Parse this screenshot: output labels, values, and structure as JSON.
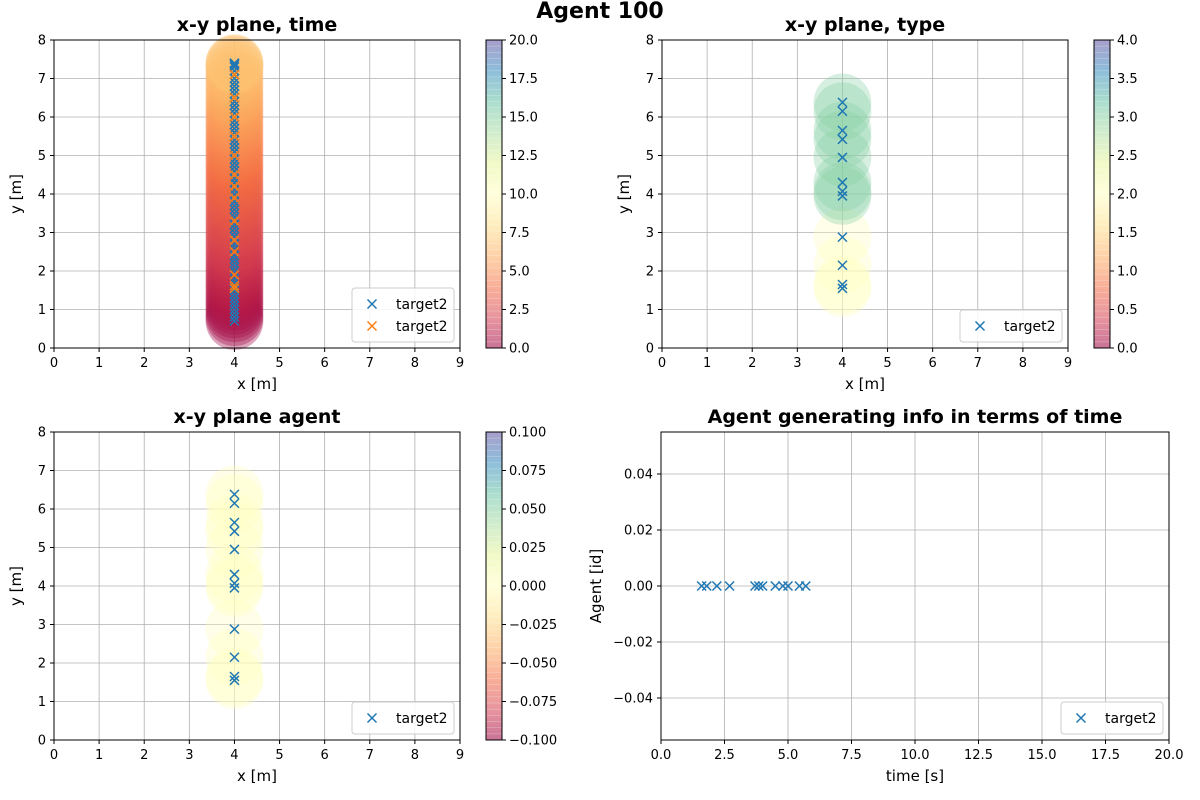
{
  "suptitle": "Agent 100",
  "colormap": [
    "#9e0142",
    "#d53e4f",
    "#f46d43",
    "#fdae61",
    "#fee08b",
    "#ffffbf",
    "#e6f598",
    "#abdda4",
    "#66c2a5",
    "#3288bd",
    "#5e4fa2"
  ],
  "colors": {
    "series_blue": "#1f77b4",
    "series_orange": "#ff7f0e",
    "grid": "#b0b0b0"
  },
  "chart_data": [
    {
      "type": "scatter",
      "title": "x-y plane, time",
      "xlabel": "x [m]",
      "ylabel": "y [m]",
      "xlim": [
        0,
        9
      ],
      "ylim": [
        0,
        8
      ],
      "xticks": [
        "0",
        "1",
        "2",
        "3",
        "4",
        "5",
        "6",
        "7",
        "8",
        "9"
      ],
      "yticks": [
        "0",
        "1",
        "2",
        "3",
        "4",
        "5",
        "6",
        "7",
        "8"
      ],
      "grid": true,
      "legend_position": "lower-right",
      "colorbar": {
        "min": 0.0,
        "max": 20.0,
        "ticks": [
          "0.0",
          "2.5",
          "5.0",
          "7.5",
          "10.0",
          "12.5",
          "15.0",
          "17.5",
          "20.0"
        ]
      },
      "bubbles": {
        "x": [
          4,
          4,
          4,
          4,
          4,
          4,
          4,
          4,
          4,
          4,
          4,
          4,
          4,
          4,
          4,
          4,
          4,
          4,
          4,
          4,
          4,
          4,
          4,
          4,
          4,
          4,
          4,
          4,
          4,
          4,
          4,
          4,
          4,
          4,
          4,
          4,
          4,
          4,
          4,
          4,
          4,
          4,
          4,
          4,
          4,
          4,
          4,
          4,
          4,
          4,
          4,
          4,
          4,
          4,
          4,
          4,
          4,
          4,
          4,
          4,
          4,
          4,
          4,
          4,
          4,
          4,
          4,
          4,
          4,
          4
        ],
        "y": [
          0.7,
          0.8,
          0.9,
          1.0,
          1.1,
          1.2,
          1.3,
          1.4,
          1.5,
          1.6,
          1.7,
          1.8,
          1.9,
          2.0,
          2.1,
          2.2,
          2.3,
          2.4,
          2.5,
          2.6,
          2.7,
          2.8,
          2.9,
          3.0,
          3.1,
          3.2,
          3.3,
          3.4,
          3.5,
          3.6,
          3.7,
          3.8,
          3.9,
          4.0,
          4.1,
          4.2,
          4.3,
          4.4,
          4.5,
          4.6,
          4.7,
          4.8,
          4.9,
          5.0,
          5.1,
          5.2,
          5.3,
          5.4,
          5.5,
          5.6,
          5.7,
          5.8,
          5.9,
          6.0,
          6.1,
          6.2,
          6.3,
          6.4,
          6.5,
          6.6,
          6.7,
          6.8,
          6.9,
          7.0,
          7.1,
          7.2,
          7.3,
          7.35,
          7.38,
          7.4
        ],
        "c": [
          0.0,
          0.1,
          0.2,
          0.3,
          0.4,
          0.5,
          0.6,
          0.7,
          0.8,
          0.9,
          1.0,
          1.1,
          1.2,
          1.3,
          1.4,
          1.5,
          1.6,
          1.7,
          1.8,
          1.9,
          2.0,
          2.1,
          2.2,
          2.3,
          2.4,
          2.5,
          2.6,
          2.7,
          2.8,
          2.9,
          3.0,
          3.1,
          3.2,
          3.3,
          3.4,
          3.5,
          3.6,
          3.7,
          3.8,
          3.9,
          4.0,
          4.1,
          4.2,
          4.3,
          4.4,
          4.5,
          4.6,
          4.7,
          4.8,
          4.9,
          5.0,
          5.1,
          5.2,
          5.3,
          5.4,
          5.5,
          5.6,
          5.7,
          5.8,
          5.9,
          6.0,
          6.1,
          6.2,
          6.3,
          6.4,
          6.5,
          6.6,
          6.7,
          6.8,
          6.9
        ]
      },
      "series": [
        {
          "name": "target2",
          "color": "#1f77b4",
          "marker": "x",
          "x": [
            4,
            4,
            4,
            4,
            4,
            4,
            4,
            4,
            4,
            4,
            4,
            4,
            4,
            4,
            4,
            4,
            4,
            4,
            4,
            4,
            4,
            4,
            4,
            4,
            4,
            4,
            4,
            4,
            4,
            4,
            4,
            4,
            4,
            4,
            4,
            4,
            4,
            4,
            4,
            4,
            4,
            4,
            4,
            4,
            4,
            4,
            4,
            4,
            4,
            4,
            4,
            4,
            4,
            4,
            4,
            4,
            4,
            4,
            4,
            4,
            4,
            4,
            4,
            4,
            4,
            4,
            4,
            4,
            4,
            4
          ],
          "y": [
            0.7,
            0.8,
            0.9,
            1.0,
            1.1,
            1.2,
            1.3,
            1.4,
            1.5,
            1.6,
            1.7,
            1.8,
            1.9,
            2.0,
            2.1,
            2.2,
            2.3,
            2.4,
            2.5,
            2.6,
            2.7,
            2.8,
            2.9,
            3.0,
            3.1,
            3.2,
            3.3,
            3.4,
            3.5,
            3.6,
            3.7,
            3.8,
            3.9,
            4.0,
            4.1,
            4.2,
            4.3,
            4.4,
            4.5,
            4.6,
            4.7,
            4.8,
            4.9,
            5.0,
            5.1,
            5.2,
            5.3,
            5.4,
            5.5,
            5.6,
            5.7,
            5.8,
            5.9,
            6.0,
            6.1,
            6.2,
            6.3,
            6.4,
            6.5,
            6.6,
            6.7,
            6.8,
            6.9,
            7.0,
            7.1,
            7.2,
            7.3,
            7.35,
            7.38,
            7.4
          ]
        },
        {
          "name": "target2",
          "color": "#ff7f0e",
          "marker": "x",
          "x": [
            4,
            4,
            4,
            4,
            4,
            4,
            4,
            4,
            4,
            4,
            4,
            4,
            4,
            4
          ],
          "y": [
            1.55,
            1.62,
            1.9,
            2.5,
            2.8,
            3.3,
            3.9,
            4.2,
            4.5,
            5.0,
            5.5,
            6.0,
            6.5,
            7.1
          ]
        }
      ]
    },
    {
      "type": "scatter",
      "title": "x-y plane, type",
      "xlabel": "x [m]",
      "ylabel": "y [m]",
      "xlim": [
        0,
        9
      ],
      "ylim": [
        0,
        8
      ],
      "xticks": [
        "0",
        "1",
        "2",
        "3",
        "4",
        "5",
        "6",
        "7",
        "8",
        "9"
      ],
      "yticks": [
        "0",
        "1",
        "2",
        "3",
        "4",
        "5",
        "6",
        "7",
        "8"
      ],
      "grid": true,
      "legend_position": "lower-right",
      "colorbar": {
        "min": 0.0,
        "max": 4.0,
        "ticks": [
          "0.0",
          "0.5",
          "1.0",
          "1.5",
          "2.0",
          "2.5",
          "3.0",
          "3.5",
          "4.0"
        ]
      },
      "bubbles": {
        "x": [
          4,
          4,
          4,
          4,
          4,
          4,
          4,
          4,
          4,
          4,
          4,
          4
        ],
        "y": [
          1.55,
          1.65,
          2.15,
          2.88,
          3.95,
          4.07,
          4.3,
          4.95,
          5.42,
          5.65,
          6.15,
          6.38
        ],
        "c": [
          2.0,
          2.0,
          2.0,
          2.0,
          3.0,
          3.0,
          3.0,
          3.0,
          3.0,
          3.0,
          3.0,
          3.0
        ]
      },
      "series": [
        {
          "name": "target2",
          "color": "#1f77b4",
          "marker": "x",
          "x": [
            4,
            4,
            4,
            4,
            4,
            4,
            4,
            4,
            4,
            4,
            4,
            4
          ],
          "y": [
            1.55,
            1.65,
            2.15,
            2.88,
            3.95,
            4.07,
            4.3,
            4.95,
            5.42,
            5.65,
            6.15,
            6.38
          ]
        }
      ]
    },
    {
      "type": "scatter",
      "title": "x-y plane agent",
      "xlabel": "x [m]",
      "ylabel": "y [m]",
      "xlim": [
        0,
        9
      ],
      "ylim": [
        0,
        8
      ],
      "xticks": [
        "0",
        "1",
        "2",
        "3",
        "4",
        "5",
        "6",
        "7",
        "8",
        "9"
      ],
      "yticks": [
        "0",
        "1",
        "2",
        "3",
        "4",
        "5",
        "6",
        "7",
        "8"
      ],
      "grid": true,
      "legend_position": "lower-right",
      "colorbar": {
        "min": -0.1,
        "max": 0.1,
        "ticks": [
          "−0.100",
          "−0.075",
          "−0.050",
          "−0.025",
          "0.000",
          "0.025",
          "0.050",
          "0.075",
          "0.100"
        ]
      },
      "bubbles": {
        "x": [
          4,
          4,
          4,
          4,
          4,
          4,
          4,
          4,
          4,
          4,
          4,
          4
        ],
        "y": [
          1.55,
          1.65,
          2.15,
          2.88,
          3.95,
          4.07,
          4.3,
          4.95,
          5.42,
          5.65,
          6.15,
          6.38
        ],
        "c": [
          0,
          0,
          0,
          0,
          0,
          0,
          0,
          0,
          0,
          0,
          0,
          0
        ]
      },
      "series": [
        {
          "name": "target2",
          "color": "#1f77b4",
          "marker": "x",
          "x": [
            4,
            4,
            4,
            4,
            4,
            4,
            4,
            4,
            4,
            4,
            4,
            4
          ],
          "y": [
            1.55,
            1.65,
            2.15,
            2.88,
            3.95,
            4.07,
            4.3,
            4.95,
            5.42,
            5.65,
            6.15,
            6.38
          ]
        }
      ]
    },
    {
      "type": "scatter",
      "title": "Agent generating info in terms of time",
      "xlabel": "time [s]",
      "ylabel": "Agent [id]",
      "xlim": [
        0,
        20
      ],
      "ylim": [
        -0.055,
        0.055
      ],
      "xticks": [
        "0.0",
        "2.5",
        "5.0",
        "7.5",
        "10.0",
        "12.5",
        "15.0",
        "17.5",
        "20.0"
      ],
      "yticks": [
        "−0.04",
        "−0.02",
        "0.00",
        "0.02",
        "0.04"
      ],
      "grid": true,
      "legend_position": "lower-right",
      "series": [
        {
          "name": "target2",
          "color": "#1f77b4",
          "marker": "x",
          "x": [
            1.6,
            1.8,
            2.2,
            2.7,
            3.7,
            3.85,
            4.0,
            4.5,
            4.8,
            5.0,
            5.45,
            5.7
          ],
          "y": [
            0,
            0,
            0,
            0,
            0,
            0,
            0,
            0,
            0,
            0,
            0,
            0
          ]
        }
      ]
    }
  ]
}
